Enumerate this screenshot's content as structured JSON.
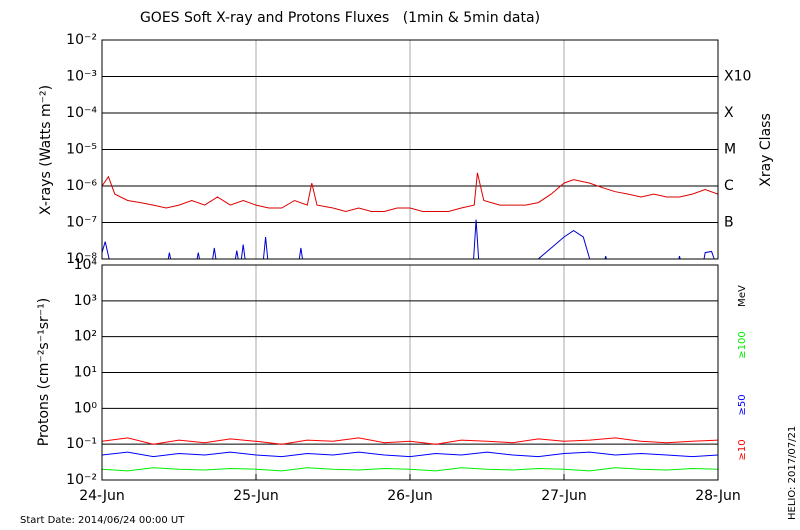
{
  "chart_data": [
    {
      "type": "line",
      "title": "GOES Soft X-ray and Protons Fluxes   (1min & 5min data)",
      "ylabel": "X-rays (Watts m⁻²)",
      "log": true,
      "grid": true,
      "xlim": [
        0,
        96
      ],
      "ylim": [
        1e-08,
        0.01
      ],
      "yticks": [
        {
          "value": 1e-08,
          "label": "10⁻⁸"
        },
        {
          "value": 1e-07,
          "label": "10⁻⁷"
        },
        {
          "value": 1e-06,
          "label": "10⁻⁶"
        },
        {
          "value": 1e-05,
          "label": "10⁻⁵"
        },
        {
          "value": 0.0001,
          "label": "10⁻⁴"
        },
        {
          "value": 0.001,
          "label": "10⁻³"
        },
        {
          "value": 0.01,
          "label": "10⁻²"
        }
      ],
      "class_label": "Xray Class",
      "classes": [
        {
          "value": 0.001,
          "label": "X10"
        },
        {
          "value": 0.0001,
          "label": "X"
        },
        {
          "value": 1e-05,
          "label": "M"
        },
        {
          "value": 1e-06,
          "label": "C"
        },
        {
          "value": 1e-07,
          "label": "B"
        }
      ],
      "series": [
        {
          "color": "#dd0000",
          "x": [
            0,
            1,
            2,
            4,
            6,
            8,
            10,
            12,
            14,
            16,
            18,
            20,
            22,
            24,
            26,
            28,
            30,
            32,
            32.7,
            33.5,
            36,
            38,
            40,
            42,
            44,
            46,
            48,
            50,
            52,
            54,
            56,
            58,
            58.5,
            59.5,
            62,
            64,
            66,
            68,
            70,
            72,
            73.5,
            76,
            78,
            80,
            82,
            84,
            86,
            88,
            90,
            92,
            94,
            96
          ],
          "values": [
            1e-06,
            1.8e-06,
            6e-07,
            4e-07,
            3.5e-07,
            3e-07,
            2.5e-07,
            3e-07,
            4e-07,
            3e-07,
            5e-07,
            3e-07,
            4e-07,
            3e-07,
            2.5e-07,
            2.5e-07,
            4e-07,
            3e-07,
            1.2e-06,
            3e-07,
            2.5e-07,
            2e-07,
            2.5e-07,
            2e-07,
            2e-07,
            2.5e-07,
            2.5e-07,
            2e-07,
            2e-07,
            2e-07,
            2.5e-07,
            3e-07,
            2.3e-06,
            4e-07,
            3e-07,
            3e-07,
            3e-07,
            3.5e-07,
            6e-07,
            1.2e-06,
            1.5e-06,
            1.2e-06,
            9e-07,
            7e-07,
            6e-07,
            5e-07,
            6e-07,
            5e-07,
            5e-07,
            6e-07,
            8e-07,
            6e-07
          ]
        },
        {
          "color": "#0000cc",
          "x": [
            0,
            0.5,
            1.5,
            10,
            10.5,
            11,
            14.5,
            15,
            15.5,
            17,
            17.5,
            18,
            20.5,
            21,
            21.5,
            22,
            22.5,
            25,
            25.5,
            26,
            30.5,
            31,
            31.5,
            57.8,
            58.3,
            58.8,
            67,
            68,
            70,
            72,
            73.5,
            75,
            76,
            77,
            78,
            78.5,
            79,
            89.5,
            90,
            90.5,
            93.5,
            94,
            95,
            96
          ],
          "values": [
            1.5e-08,
            3e-08,
            5e-09,
            5e-09,
            1.5e-08,
            5e-09,
            5e-09,
            1.5e-08,
            5e-09,
            5e-09,
            2e-08,
            5e-09,
            5e-09,
            1.7e-08,
            5e-09,
            2.5e-08,
            5e-09,
            5e-09,
            4e-08,
            5e-09,
            5e-09,
            2e-08,
            5e-09,
            5e-09,
            1.2e-07,
            5e-09,
            5e-09,
            1e-08,
            2e-08,
            4e-08,
            6e-08,
            4e-08,
            1e-08,
            5e-09,
            5e-09,
            1.2e-08,
            5e-09,
            5e-09,
            1.2e-08,
            5e-09,
            5e-09,
            1.5e-08,
            1.6e-08,
            5e-09
          ]
        }
      ]
    },
    {
      "type": "line",
      "ylabel": "Protons (cm⁻²s⁻¹sr⁻¹)",
      "log": true,
      "grid": true,
      "xlim": [
        0,
        96
      ],
      "ylim": [
        0.01,
        10000
      ],
      "xticks": [
        {
          "value": 0,
          "label": "24-Jun"
        },
        {
          "value": 24,
          "label": "25-Jun"
        },
        {
          "value": 48,
          "label": "26-Jun"
        },
        {
          "value": 72,
          "label": "27-Jun"
        },
        {
          "value": 96,
          "label": "28-Jun"
        }
      ],
      "yticks": [
        {
          "value": 0.01,
          "label": "10⁻²"
        },
        {
          "value": 0.1,
          "label": "10⁻¹"
        },
        {
          "value": 1,
          "label": "10⁰"
        },
        {
          "value": 10,
          "label": "10¹"
        },
        {
          "value": 100,
          "label": "10²"
        },
        {
          "value": 1000,
          "label": "10³"
        },
        {
          "value": 10000,
          "label": "10⁴"
        }
      ],
      "threshold": 10,
      "unit_label": "MeV",
      "x": [
        0,
        4,
        8,
        12,
        16,
        20,
        24,
        28,
        32,
        36,
        40,
        44,
        48,
        52,
        56,
        60,
        64,
        68,
        72,
        76,
        80,
        84,
        88,
        92,
        96
      ],
      "series": [
        {
          "name": "≥10",
          "color": "#ff0000",
          "values": [
            0.12,
            0.15,
            0.1,
            0.13,
            0.11,
            0.14,
            0.12,
            0.1,
            0.13,
            0.12,
            0.15,
            0.11,
            0.12,
            0.1,
            0.13,
            0.12,
            0.11,
            0.14,
            0.12,
            0.13,
            0.15,
            0.12,
            0.11,
            0.12,
            0.13
          ]
        },
        {
          "name": "≥50",
          "color": "#0000ff",
          "values": [
            0.05,
            0.06,
            0.045,
            0.055,
            0.05,
            0.06,
            0.05,
            0.045,
            0.055,
            0.05,
            0.06,
            0.05,
            0.045,
            0.055,
            0.05,
            0.06,
            0.05,
            0.045,
            0.055,
            0.06,
            0.05,
            0.055,
            0.05,
            0.045,
            0.05
          ]
        },
        {
          "name": "≥100",
          "color": "#00ee00",
          "values": [
            0.02,
            0.018,
            0.022,
            0.02,
            0.019,
            0.021,
            0.02,
            0.018,
            0.022,
            0.02,
            0.019,
            0.021,
            0.02,
            0.018,
            0.022,
            0.02,
            0.019,
            0.021,
            0.02,
            0.018,
            0.022,
            0.02,
            0.019,
            0.021,
            0.02
          ]
        }
      ]
    }
  ],
  "footer": {
    "start": "Start Date: 2014/06/24 00:00 UT",
    "credit": "HELIO: 2017/07/21"
  }
}
